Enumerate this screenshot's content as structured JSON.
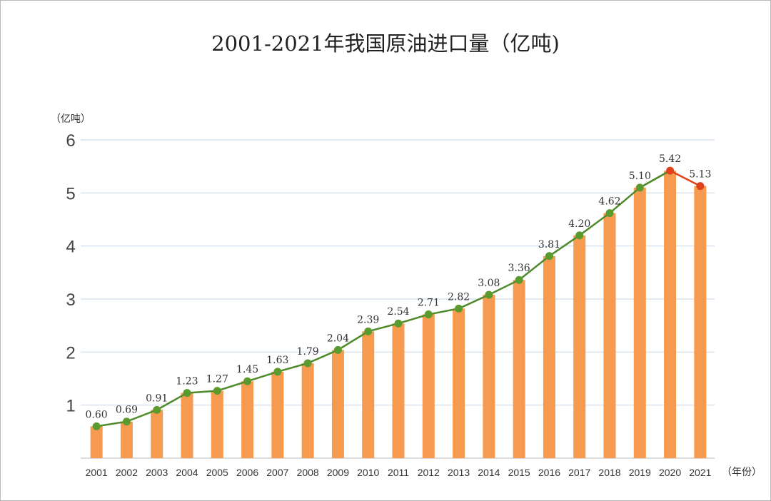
{
  "chart_data": {
    "type": "bar+line",
    "title": "2001-2021年我国原油进口量（亿吨)",
    "ylabel": "（亿吨）",
    "xlabel": "（年份）",
    "ylim": [
      0,
      6
    ],
    "yticks": [
      "1",
      "2",
      "3",
      "4",
      "5",
      "6"
    ],
    "grid": true,
    "categories": [
      "2001",
      "2002",
      "2003",
      "2004",
      "2005",
      "2006",
      "2007",
      "2008",
      "2009",
      "2010",
      "2011",
      "2012",
      "2013",
      "2014",
      "2015",
      "2016",
      "2017",
      "2018",
      "2019",
      "2020",
      "2021"
    ],
    "values": [
      0.6,
      0.69,
      0.91,
      1.23,
      1.27,
      1.45,
      1.63,
      1.79,
      2.04,
      2.39,
      2.54,
      2.71,
      2.82,
      3.08,
      3.36,
      3.81,
      4.2,
      4.62,
      5.1,
      5.42,
      5.13
    ],
    "data_labels": [
      "0.60",
      "0.69",
      "0.91",
      "1.23",
      "1.27",
      "1.45",
      "1.63",
      "1.79",
      "2.04",
      "2.39",
      "2.54",
      "2.71",
      "2.82",
      "3.08",
      "3.36",
      "3.81",
      "4.20",
      "4.62",
      "5.10",
      "5.42",
      "5.13"
    ],
    "colors": {
      "bar": "#f59a4f",
      "line": "#4f8a2b",
      "marker": "#5b9a2e",
      "highlight": "#e0421b",
      "grid": "#cfdcea",
      "text": "#333333"
    }
  }
}
